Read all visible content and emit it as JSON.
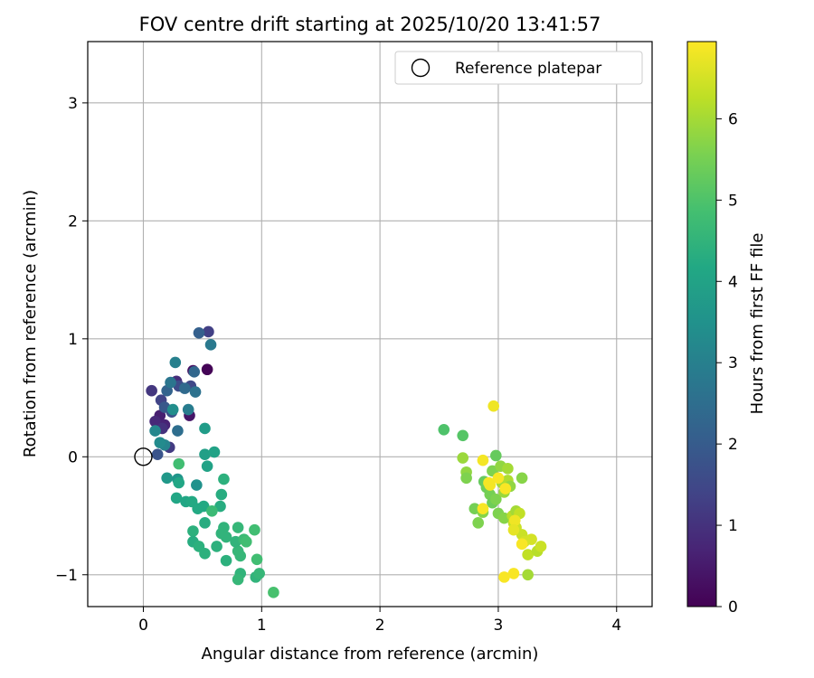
{
  "chart_data": {
    "type": "scatter",
    "title": "FOV centre drift starting at 2025/10/20 13:41:57",
    "xlabel": "Angular distance from reference (arcmin)",
    "ylabel": "Rotation from reference (arcmin)",
    "xlim": [
      -0.47,
      4.3
    ],
    "ylim": [
      -1.27,
      3.52
    ],
    "xticks": [
      0,
      1,
      2,
      3,
      4
    ],
    "yticks": [
      -1,
      0,
      1,
      2,
      3
    ],
    "xtick_labels": [
      "0",
      "1",
      "2",
      "3",
      "4"
    ],
    "ytick_labels": [
      "−1",
      "0",
      "1",
      "2",
      "3"
    ],
    "grid": true,
    "legend": {
      "position": "top-right",
      "entries": [
        {
          "label": "Reference platepar",
          "marker": "open-circle"
        }
      ]
    },
    "reference_point": {
      "x": 0,
      "y": 0,
      "label": "Reference platepar"
    },
    "colorbar": {
      "label": "Hours from first FF file",
      "range": [
        0,
        6.95
      ],
      "ticks": [
        0,
        1,
        2,
        3,
        4,
        5,
        6
      ],
      "tick_labels": [
        "0",
        "1",
        "2",
        "3",
        "4",
        "5",
        "6"
      ],
      "colormap": "viridis"
    },
    "points": [
      {
        "x": 0.54,
        "y": 0.74,
        "t": 0.05
      },
      {
        "x": 0.42,
        "y": 0.73,
        "t": 0.3
      },
      {
        "x": 0.39,
        "y": 0.35,
        "t": 0.4
      },
      {
        "x": 0.14,
        "y": 0.35,
        "t": 0.6
      },
      {
        "x": 0.18,
        "y": 0.27,
        "t": 0.7
      },
      {
        "x": 0.1,
        "y": 0.3,
        "t": 0.8
      },
      {
        "x": 0.28,
        "y": 0.64,
        "t": 0.9
      },
      {
        "x": 0.16,
        "y": 0.24,
        "t": 1.0
      },
      {
        "x": 0.07,
        "y": 0.56,
        "t": 1.1
      },
      {
        "x": 0.22,
        "y": 0.08,
        "t": 1.2
      },
      {
        "x": 0.55,
        "y": 1.06,
        "t": 1.3
      },
      {
        "x": 0.15,
        "y": 0.48,
        "t": 1.4
      },
      {
        "x": 0.4,
        "y": 0.6,
        "t": 1.5
      },
      {
        "x": 0.3,
        "y": 0.6,
        "t": 1.6
      },
      {
        "x": 0.24,
        "y": 0.38,
        "t": 1.7
      },
      {
        "x": 0.12,
        "y": 0.02,
        "t": 1.8
      },
      {
        "x": 0.18,
        "y": 0.42,
        "t": 1.9
      },
      {
        "x": 0.47,
        "y": 1.05,
        "t": 2.1
      },
      {
        "x": 0.2,
        "y": 0.56,
        "t": 2.2
      },
      {
        "x": 0.43,
        "y": 0.72,
        "t": 2.3
      },
      {
        "x": 0.35,
        "y": 0.58,
        "t": 2.4
      },
      {
        "x": 0.29,
        "y": 0.22,
        "t": 2.5
      },
      {
        "x": 0.44,
        "y": 0.55,
        "t": 2.6
      },
      {
        "x": 0.23,
        "y": 0.63,
        "t": 2.7
      },
      {
        "x": 0.57,
        "y": 0.95,
        "t": 2.8
      },
      {
        "x": 0.38,
        "y": 0.4,
        "t": 2.9
      },
      {
        "x": 0.27,
        "y": 0.8,
        "t": 3.0
      },
      {
        "x": 0.18,
        "y": 0.1,
        "t": 3.1
      },
      {
        "x": 0.1,
        "y": 0.22,
        "t": 3.2
      },
      {
        "x": 0.14,
        "y": 0.12,
        "t": 3.3
      },
      {
        "x": 0.25,
        "y": 0.4,
        "t": 3.4
      },
      {
        "x": 0.45,
        "y": -0.24,
        "t": 3.5
      },
      {
        "x": 0.29,
        "y": -0.19,
        "t": 3.6
      },
      {
        "x": 0.2,
        "y": -0.18,
        "t": 3.7
      },
      {
        "x": 0.52,
        "y": 0.24,
        "t": 3.8
      },
      {
        "x": 0.52,
        "y": 0.02,
        "t": 3.9
      },
      {
        "x": 0.6,
        "y": 0.04,
        "t": 4.0
      },
      {
        "x": 0.54,
        "y": -0.08,
        "t": 4.0
      },
      {
        "x": 0.28,
        "y": -0.35,
        "t": 4.1
      },
      {
        "x": 0.36,
        "y": -0.38,
        "t": 4.1
      },
      {
        "x": 0.41,
        "y": -0.38,
        "t": 4.2
      },
      {
        "x": 0.46,
        "y": -0.44,
        "t": 4.2
      },
      {
        "x": 0.51,
        "y": -0.42,
        "t": 4.2
      },
      {
        "x": 0.66,
        "y": -0.32,
        "t": 4.3
      },
      {
        "x": 0.65,
        "y": -0.42,
        "t": 4.3
      },
      {
        "x": 0.68,
        "y": -0.19,
        "t": 4.4
      },
      {
        "x": 0.42,
        "y": -0.63,
        "t": 4.4
      },
      {
        "x": 0.42,
        "y": -0.72,
        "t": 4.3
      },
      {
        "x": 0.47,
        "y": -0.76,
        "t": 4.4
      },
      {
        "x": 0.52,
        "y": -0.82,
        "t": 4.4
      },
      {
        "x": 0.62,
        "y": -0.76,
        "t": 4.4
      },
      {
        "x": 0.52,
        "y": -0.56,
        "t": 4.3
      },
      {
        "x": 0.68,
        "y": -0.6,
        "t": 4.5
      },
      {
        "x": 0.66,
        "y": -0.65,
        "t": 4.5
      },
      {
        "x": 0.7,
        "y": -0.68,
        "t": 4.5
      },
      {
        "x": 0.7,
        "y": -0.88,
        "t": 4.4
      },
      {
        "x": 0.8,
        "y": -0.6,
        "t": 4.6
      },
      {
        "x": 0.8,
        "y": -0.8,
        "t": 4.6
      },
      {
        "x": 0.82,
        "y": -0.84,
        "t": 4.6
      },
      {
        "x": 0.78,
        "y": -0.72,
        "t": 4.5
      },
      {
        "x": 0.85,
        "y": -0.7,
        "t": 4.7
      },
      {
        "x": 0.87,
        "y": -0.72,
        "t": 4.8
      },
      {
        "x": 0.94,
        "y": -0.62,
        "t": 4.8
      },
      {
        "x": 0.82,
        "y": -0.99,
        "t": 4.5
      },
      {
        "x": 0.8,
        "y": -1.04,
        "t": 4.6
      },
      {
        "x": 0.95,
        "y": -1.02,
        "t": 4.5
      },
      {
        "x": 0.98,
        "y": -0.99,
        "t": 4.6
      },
      {
        "x": 0.96,
        "y": -0.87,
        "t": 4.8
      },
      {
        "x": 1.1,
        "y": -1.15,
        "t": 4.9
      },
      {
        "x": 0.3,
        "y": -0.06,
        "t": 4.8
      },
      {
        "x": 0.58,
        "y": -0.46,
        "t": 4.7
      },
      {
        "x": 0.3,
        "y": -0.22,
        "t": 4.1
      },
      {
        "x": 2.54,
        "y": 0.23,
        "t": 5.0
      },
      {
        "x": 2.7,
        "y": 0.18,
        "t": 5.1
      },
      {
        "x": 2.7,
        "y": -0.01,
        "t": 5.9
      },
      {
        "x": 2.73,
        "y": -0.13,
        "t": 5.8
      },
      {
        "x": 2.73,
        "y": -0.18,
        "t": 5.6
      },
      {
        "x": 2.8,
        "y": -0.44,
        "t": 5.5
      },
      {
        "x": 2.83,
        "y": -0.56,
        "t": 5.6
      },
      {
        "x": 2.87,
        "y": -0.47,
        "t": 5.7
      },
      {
        "x": 2.88,
        "y": -0.21,
        "t": 5.3
      },
      {
        "x": 2.9,
        "y": -0.26,
        "t": 5.4
      },
      {
        "x": 2.93,
        "y": -0.32,
        "t": 5.5
      },
      {
        "x": 2.95,
        "y": -0.12,
        "t": 5.6
      },
      {
        "x": 2.95,
        "y": -0.39,
        "t": 5.4
      },
      {
        "x": 2.98,
        "y": 0.01,
        "t": 5.3
      },
      {
        "x": 2.98,
        "y": -0.36,
        "t": 5.6
      },
      {
        "x": 3.0,
        "y": -0.48,
        "t": 5.6
      },
      {
        "x": 3.02,
        "y": -0.08,
        "t": 5.8
      },
      {
        "x": 3.03,
        "y": -0.22,
        "t": 6.0
      },
      {
        "x": 3.05,
        "y": -0.3,
        "t": 5.9
      },
      {
        "x": 3.05,
        "y": -0.52,
        "t": 5.7
      },
      {
        "x": 3.08,
        "y": -0.2,
        "t": 6.1
      },
      {
        "x": 3.08,
        "y": -0.1,
        "t": 6.0
      },
      {
        "x": 3.1,
        "y": -0.25,
        "t": 5.8
      },
      {
        "x": 3.12,
        "y": -0.5,
        "t": 6.2
      },
      {
        "x": 3.13,
        "y": -0.56,
        "t": 6.3
      },
      {
        "x": 3.15,
        "y": -0.6,
        "t": 6.4
      },
      {
        "x": 3.15,
        "y": -0.46,
        "t": 6.0
      },
      {
        "x": 3.18,
        "y": -0.48,
        "t": 6.3
      },
      {
        "x": 3.2,
        "y": -0.18,
        "t": 5.7
      },
      {
        "x": 3.2,
        "y": -0.66,
        "t": 6.4
      },
      {
        "x": 3.22,
        "y": -0.72,
        "t": 6.5
      },
      {
        "x": 3.25,
        "y": -0.83,
        "t": 6.3
      },
      {
        "x": 3.25,
        "y": -1.0,
        "t": 6.0
      },
      {
        "x": 3.28,
        "y": -0.7,
        "t": 6.5
      },
      {
        "x": 3.33,
        "y": -0.8,
        "t": 6.2
      },
      {
        "x": 3.36,
        "y": -0.76,
        "t": 6.4
      },
      {
        "x": 2.96,
        "y": 0.43,
        "t": 6.8
      },
      {
        "x": 2.87,
        "y": -0.03,
        "t": 6.85
      },
      {
        "x": 2.92,
        "y": -0.22,
        "t": 6.9
      },
      {
        "x": 2.87,
        "y": -0.44,
        "t": 6.9
      },
      {
        "x": 3.0,
        "y": -0.18,
        "t": 6.9
      },
      {
        "x": 3.06,
        "y": -0.27,
        "t": 6.9
      },
      {
        "x": 3.14,
        "y": -0.54,
        "t": 6.8
      },
      {
        "x": 3.2,
        "y": -0.74,
        "t": 6.9
      },
      {
        "x": 3.05,
        "y": -1.02,
        "t": 6.9
      },
      {
        "x": 3.13,
        "y": -0.99,
        "t": 6.9
      },
      {
        "x": 3.13,
        "y": -0.62,
        "t": 6.7
      },
      {
        "x": 2.93,
        "y": -0.24,
        "t": 6.85
      }
    ]
  }
}
